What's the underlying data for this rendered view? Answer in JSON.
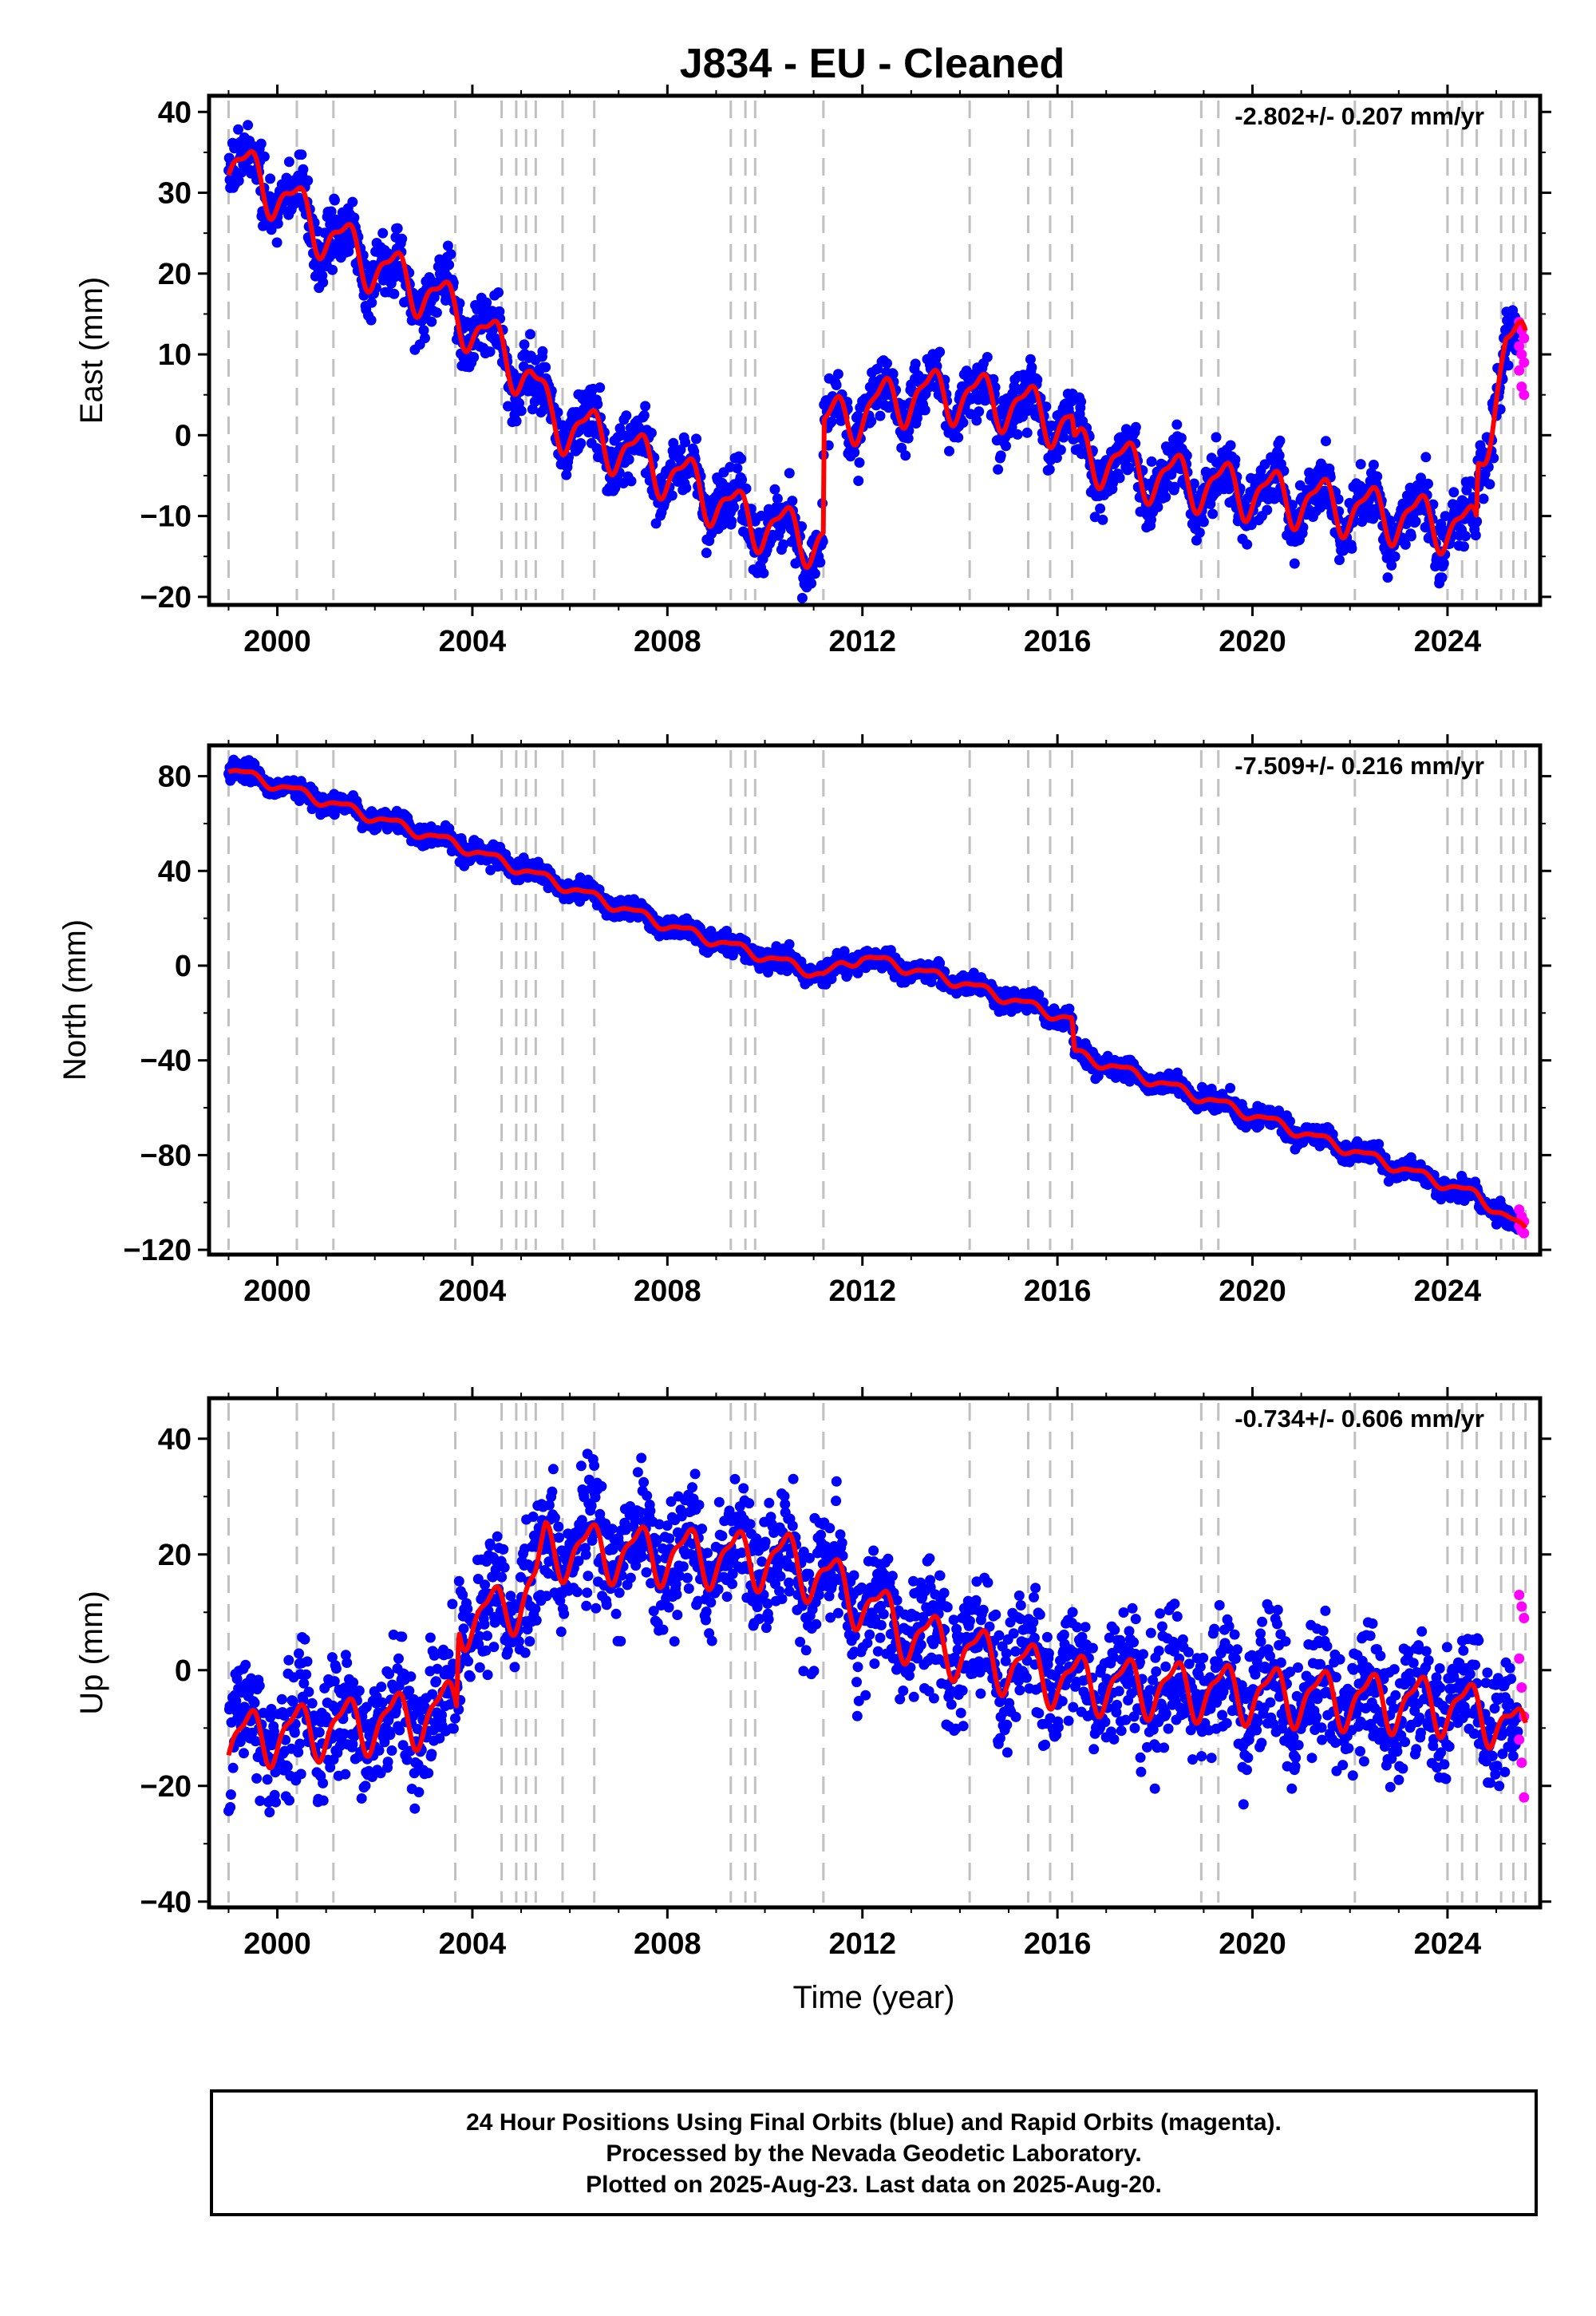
{
  "chart_data": {
    "type": "scatter",
    "title": "J834  - EU - Cleaned",
    "x_unit": "year",
    "xlabel": "Time (year)",
    "xlim": [
      1998.6,
      2025.9
    ],
    "xticks": [
      2000,
      2004,
      2008,
      2012,
      2016,
      2020,
      2024
    ],
    "event_lines": [
      1999.0,
      2000.4,
      2001.15,
      2003.65,
      2004.6,
      2004.9,
      2005.1,
      2005.3,
      2005.85,
      2006.5,
      2009.3,
      2009.6,
      2009.8,
      2011.2,
      2014.2,
      2015.4,
      2015.85,
      2016.3,
      2018.95,
      2019.3,
      2022.1,
      2024.0,
      2024.3,
      2024.6,
      2025.1,
      2025.35,
      2025.6
    ],
    "colors": {
      "final": "#0000ff",
      "rapid": "#ff00ff",
      "model": "#ff0000",
      "events": "#c0c0c0"
    },
    "panels": [
      {
        "key": "east",
        "ylabel": "East (mm)",
        "ylim": [
          -21,
          42
        ],
        "yticks": [
          -20,
          -10,
          0,
          10,
          20,
          30,
          40
        ],
        "rate": "-2.802+/- 0.207 mm/yr",
        "noise": 1.9,
        "model_points": [
          [
            1999.0,
            34
          ],
          [
            2000.0,
            30
          ],
          [
            2001.0,
            25
          ],
          [
            2002.0,
            21
          ],
          [
            2003.0,
            18
          ],
          [
            2003.7,
            15
          ],
          [
            2004.5,
            11
          ],
          [
            2005.2,
            7
          ],
          [
            2005.6,
            2
          ],
          [
            2006.5,
            0
          ],
          [
            2007.5,
            -3
          ],
          [
            2008.5,
            -6
          ],
          [
            2009.5,
            -10
          ],
          [
            2010.5,
            -12
          ],
          [
            2011.2,
            -13
          ],
          [
            2011.21,
            1
          ],
          [
            2012.0,
            3
          ],
          [
            2013.0,
            5
          ],
          [
            2014.0,
            5
          ],
          [
            2015.0,
            4
          ],
          [
            2016.0,
            2
          ],
          [
            2016.3,
            1
          ],
          [
            2016.35,
            -2
          ],
          [
            2017.0,
            -3
          ],
          [
            2018.0,
            -5
          ],
          [
            2019.0,
            -6
          ],
          [
            2020.0,
            -7
          ],
          [
            2021.0,
            -8
          ],
          [
            2022.0,
            -9
          ],
          [
            2023.0,
            -10
          ],
          [
            2024.0,
            -11
          ],
          [
            2024.6,
            -12
          ],
          [
            2024.62,
            -5
          ],
          [
            2025.0,
            6
          ],
          [
            2025.2,
            11
          ],
          [
            2025.6,
            11
          ]
        ],
        "season_amp": 3.0,
        "rapid_values": [
          14,
          13,
          12,
          11,
          10,
          9,
          8,
          6,
          5
        ]
      },
      {
        "key": "north",
        "ylabel": "North (mm)",
        "ylim": [
          -122,
          93
        ],
        "yticks": [
          -120,
          -80,
          -40,
          0,
          40,
          80
        ],
        "rate": "-7.509+/- 0.216 mm/yr",
        "noise": 2.2,
        "model_points": [
          [
            1999.0,
            83
          ],
          [
            2003.7,
            51
          ],
          [
            2008.0,
            17
          ],
          [
            2011.2,
            -4
          ],
          [
            2012.0,
            4
          ],
          [
            2014.0,
            -7
          ],
          [
            2016.3,
            -23
          ],
          [
            2016.35,
            -37
          ],
          [
            2020.0,
            -63
          ],
          [
            2024.6,
            -97
          ],
          [
            2025.6,
            -112
          ]
        ],
        "season_amp": 2.0,
        "rapid_values": [
          -103,
          -106,
          -108,
          -110,
          -112,
          -113
        ]
      },
      {
        "key": "up",
        "ylabel": "Up (mm)",
        "ylim": [
          -41,
          47
        ],
        "yticks": [
          -40,
          -20,
          0,
          20,
          40
        ],
        "rate": "-0.734+/- 0.606 mm/yr",
        "noise": 5.5,
        "model_points": [
          [
            1999.0,
            -12
          ],
          [
            2001.0,
            -10
          ],
          [
            2003.0,
            -8
          ],
          [
            2003.68,
            -6
          ],
          [
            2003.72,
            9
          ],
          [
            2004.6,
            10
          ],
          [
            2005.3,
            15
          ],
          [
            2005.5,
            21
          ],
          [
            2008.0,
            20
          ],
          [
            2010.5,
            19
          ],
          [
            2011.2,
            16
          ],
          [
            2012.0,
            12
          ],
          [
            2013.0,
            6
          ],
          [
            2014.2,
            3
          ],
          [
            2015.0,
            1
          ],
          [
            2016.3,
            -2
          ],
          [
            2018.0,
            -3
          ],
          [
            2020.0,
            -4
          ],
          [
            2022.0,
            -5
          ],
          [
            2024.0,
            -6
          ],
          [
            2025.0,
            -8
          ],
          [
            2025.6,
            -12
          ]
        ],
        "season_amp": 4.5,
        "rapid_values": [
          13,
          11,
          9,
          2,
          -3,
          -8,
          -12,
          -16,
          -22
        ]
      }
    ]
  },
  "footer": {
    "line1": "24 Hour Positions Using Final Orbits (blue) and Rapid Orbits (magenta).",
    "line2": "Processed by the Nevada Geodetic Laboratory.",
    "line3": "Plotted on 2025-Aug-23. Last data on 2025-Aug-20."
  }
}
